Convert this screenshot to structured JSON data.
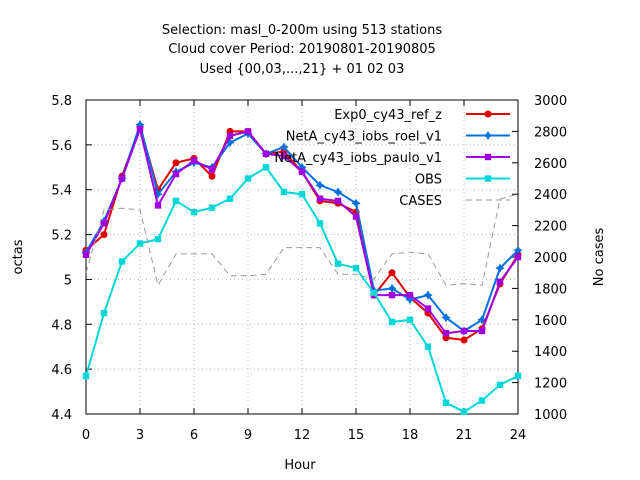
{
  "chart_data": {
    "type": "line",
    "title": [
      "Selection: masl_0-200m using   513 stations",
      "Cloud cover   Period: 20190801-20190805",
      "Used {00,03,...,21} + 01 02 03"
    ],
    "xlabel": "Hour",
    "ylabel": "octas",
    "y2label": "No cases",
    "xlim": [
      0,
      24
    ],
    "ylim": [
      4.4,
      5.8
    ],
    "y2lim": [
      1000,
      3000
    ],
    "x_ticks": [
      0,
      3,
      6,
      9,
      12,
      15,
      18,
      21,
      24
    ],
    "y_ticks": [
      4.4,
      4.6,
      4.8,
      5,
      5.2,
      5.4,
      5.6,
      5.8
    ],
    "y_tick_labels": [
      "4.4",
      "4.6",
      "4.8",
      "5",
      "5.2",
      "5.4",
      "5.6",
      "5.8"
    ],
    "y2_ticks": [
      1000,
      1200,
      1400,
      1600,
      1800,
      2000,
      2200,
      2400,
      2600,
      2800,
      3000
    ],
    "grid": true,
    "legend_position": "top-right",
    "x": [
      0,
      1,
      2,
      3,
      4,
      5,
      6,
      7,
      8,
      9,
      10,
      11,
      12,
      13,
      14,
      15,
      16,
      17,
      18,
      19,
      20,
      21,
      22,
      23,
      24
    ],
    "series": [
      {
        "name": "Exp0_cy43_ref_z",
        "color": "#e00000",
        "marker": "filled-circle",
        "axis": "left",
        "values": [
          5.13,
          5.2,
          5.46,
          5.68,
          5.4,
          5.52,
          5.54,
          5.46,
          5.66,
          5.66,
          5.56,
          5.57,
          5.48,
          5.35,
          5.34,
          5.3,
          4.93,
          5.03,
          4.92,
          4.85,
          4.74,
          4.73,
          4.78,
          4.98,
          5.11
        ]
      },
      {
        "name": "NetA_cy43_iobs_roel_v1",
        "color": "#0070e0",
        "marker": "filled-star",
        "axis": "left",
        "values": [
          5.12,
          5.26,
          5.45,
          5.69,
          5.38,
          5.48,
          5.52,
          5.5,
          5.61,
          5.65,
          5.56,
          5.59,
          5.5,
          5.42,
          5.39,
          5.34,
          4.95,
          4.96,
          4.91,
          4.93,
          4.83,
          4.77,
          4.82,
          5.05,
          5.13
        ]
      },
      {
        "name": "NetA_cy43_iobs_paulo_v1",
        "color": "#a000e0",
        "marker": "filled-square",
        "axis": "left",
        "values": [
          5.11,
          5.25,
          5.45,
          5.67,
          5.33,
          5.47,
          5.53,
          5.49,
          5.64,
          5.66,
          5.56,
          5.55,
          5.48,
          5.36,
          5.35,
          5.28,
          4.93,
          4.93,
          4.93,
          4.87,
          4.76,
          4.77,
          4.77,
          4.99,
          5.1
        ]
      },
      {
        "name": "OBS",
        "color": "#00d8d8",
        "marker": "filled-square",
        "axis": "left",
        "values": [
          4.57,
          4.85,
          5.08,
          5.16,
          5.18,
          5.35,
          5.3,
          5.32,
          5.36,
          5.45,
          5.5,
          5.39,
          5.38,
          5.25,
          5.07,
          5.05,
          4.94,
          4.81,
          4.82,
          4.7,
          4.45,
          4.41,
          4.46,
          4.53,
          4.57
        ]
      },
      {
        "name": "CASES",
        "color": "#999999",
        "marker": "none",
        "dash": "dashed",
        "axis": "right",
        "values": [
          1900,
          2300,
          2310,
          2300,
          1820,
          2020,
          2020,
          2020,
          1880,
          1880,
          1890,
          2060,
          2060,
          2060,
          1890,
          1890,
          1860,
          2020,
          2030,
          2020,
          1820,
          1830,
          1820,
          2370,
          2400
        ]
      }
    ]
  }
}
